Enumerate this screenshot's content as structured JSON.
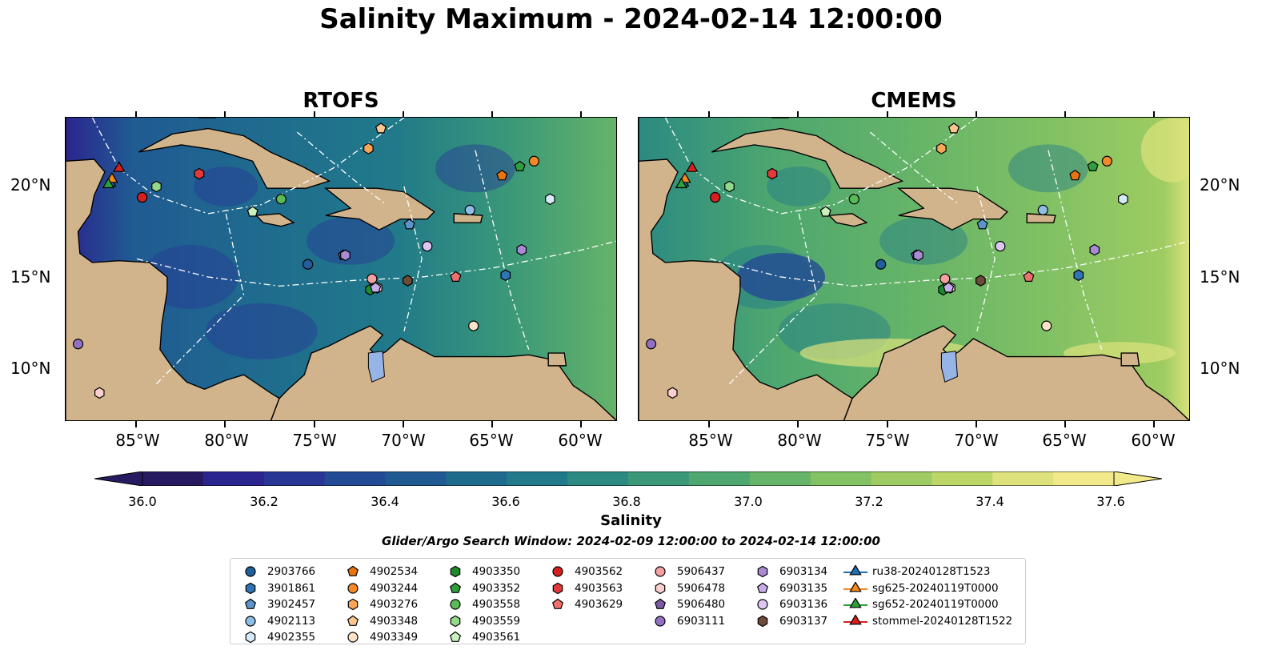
{
  "title": "Salinity Maximum - 2024-02-14 12:00:00",
  "panels": [
    {
      "title": "RTOFS"
    },
    {
      "title": "CMEMS"
    }
  ],
  "axes": {
    "lat_labels": [
      "20°N",
      "15°N",
      "10°N"
    ],
    "lon_labels": [
      "85°W",
      "80°W",
      "75°W",
      "70°W",
      "65°W",
      "60°W"
    ],
    "extent": {
      "lon_min": -89,
      "lon_max": -58,
      "lat_min": 7,
      "lat_max": 23.8
    }
  },
  "colorbar": {
    "label": "Salinity",
    "ticks": [
      "36.0",
      "36.2",
      "36.4",
      "36.6",
      "36.8",
      "37.0",
      "37.2",
      "37.4",
      "37.6"
    ],
    "range": [
      36.0,
      37.6
    ],
    "colors": [
      "#271a60",
      "#2b2590",
      "#283796",
      "#234a94",
      "#205a92",
      "#1f6b8e",
      "#217a89",
      "#2b8a82",
      "#3a9879",
      "#4ea76f",
      "#66b468",
      "#82c164",
      "#9ecc62",
      "#bcd768",
      "#dde27c",
      "#f2e98a"
    ]
  },
  "search_window": "Glider/Argo Search Window: 2024-02-09 12:00:00 to 2024-02-14 12:00:00",
  "legend": [
    {
      "label": "2903766",
      "shape": "circle",
      "color": "#1f5f9e"
    },
    {
      "label": "3901861",
      "shape": "hexagon",
      "color": "#2f74b5"
    },
    {
      "label": "3902457",
      "shape": "pentagon",
      "color": "#5b95cc"
    },
    {
      "label": "4902113",
      "shape": "circle",
      "color": "#8ebde6"
    },
    {
      "label": "4902355",
      "shape": "hexagon",
      "color": "#d6ebfa"
    },
    {
      "label": "4902534",
      "shape": "pentagon",
      "color": "#e8740f"
    },
    {
      "label": "4903244",
      "shape": "circle",
      "color": "#f5892a"
    },
    {
      "label": "4903276",
      "shape": "hexagon",
      "color": "#f8a65a"
    },
    {
      "label": "4903348",
      "shape": "pentagon",
      "color": "#fbc690"
    },
    {
      "label": "4903349",
      "shape": "circle",
      "color": "#fde3c8"
    },
    {
      "label": "4903350",
      "shape": "hexagon",
      "color": "#1d8a2e"
    },
    {
      "label": "4903352",
      "shape": "pentagon",
      "color": "#2f9e3c"
    },
    {
      "label": "4903558",
      "shape": "circle",
      "color": "#58bb58"
    },
    {
      "label": "4903559",
      "shape": "hexagon",
      "color": "#93d98a"
    },
    {
      "label": "4903561",
      "shape": "pentagon",
      "color": "#c9f0bd"
    },
    {
      "label": "4903562",
      "shape": "circle",
      "color": "#d6201f"
    },
    {
      "label": "4903563",
      "shape": "hexagon",
      "color": "#e23a3a"
    },
    {
      "label": "4903629",
      "shape": "pentagon",
      "color": "#f07070"
    },
    {
      "label": "5906437",
      "shape": "circle",
      "color": "#f4a0a0"
    },
    {
      "label": "5906478",
      "shape": "hexagon",
      "color": "#fccfcf"
    },
    {
      "label": "5906480",
      "shape": "pentagon",
      "color": "#7b5aa6"
    },
    {
      "label": "6903111",
      "shape": "circle",
      "color": "#9370c2"
    },
    {
      "label": "6903134",
      "shape": "hexagon",
      "color": "#a98ad4"
    },
    {
      "label": "6903135",
      "shape": "pentagon",
      "color": "#c6acea"
    },
    {
      "label": "6903136",
      "shape": "circle",
      "color": "#dec8f3"
    },
    {
      "label": "6903137",
      "shape": "hexagon",
      "color": "#6e4a3a"
    },
    {
      "label": "ru38-20240128T1523",
      "shape": "triangle",
      "color": "#1f6fb3"
    },
    {
      "label": "sg625-20240119T0000",
      "shape": "triangle",
      "color": "#f5891e"
    },
    {
      "label": "sg652-20240119T0000",
      "shape": "triangle",
      "color": "#2f9e3c"
    },
    {
      "label": "stommel-20240128T1522",
      "shape": "triangle",
      "color": "#d6201f"
    }
  ],
  "markers": [
    {
      "id": "2903766",
      "lon": -75.4,
      "lat": 15.7
    },
    {
      "id": "3901861",
      "lon": -64.3,
      "lat": 15.1
    },
    {
      "id": "3902457",
      "lon": -69.7,
      "lat": 17.9
    },
    {
      "id": "4902113",
      "lon": -66.3,
      "lat": 18.7
    },
    {
      "id": "4902355",
      "lon": -61.8,
      "lat": 19.3
    },
    {
      "id": "4902534",
      "lon": -64.5,
      "lat": 20.6
    },
    {
      "id": "4903244",
      "lon": -62.7,
      "lat": 21.4
    },
    {
      "id": "4903276",
      "lon": -72.0,
      "lat": 22.1
    },
    {
      "id": "4903348",
      "lon": -71.3,
      "lat": 23.2
    },
    {
      "id": "4903349",
      "lon": -66.1,
      "lat": 12.3
    },
    {
      "id": "4903350",
      "lon": -71.9,
      "lat": 14.3
    },
    {
      "id": "4903352",
      "lon": -63.5,
      "lat": 21.1
    },
    {
      "id": "4903558",
      "lon": -76.9,
      "lat": 19.3
    },
    {
      "id": "4903559",
      "lon": -83.9,
      "lat": 20.0
    },
    {
      "id": "4903561",
      "lon": -78.5,
      "lat": 18.6
    },
    {
      "id": "4903562",
      "lon": -84.7,
      "lat": 19.4
    },
    {
      "id": "4903563",
      "lon": -81.5,
      "lat": 20.7
    },
    {
      "id": "4903629",
      "lon": -67.1,
      "lat": 15.0
    },
    {
      "id": "5906437",
      "lon": -71.8,
      "lat": 14.9
    },
    {
      "id": "5906478",
      "lon": -71.5,
      "lat": 14.4
    },
    {
      "id": "5906480",
      "lon": -73.4,
      "lat": 16.2
    },
    {
      "id": "6903111",
      "lon": -88.3,
      "lat": 11.3
    },
    {
      "id": "6903134",
      "lon": -73.3,
      "lat": 16.2
    },
    {
      "id": "6903135",
      "lon": -71.6,
      "lat": 14.4
    },
    {
      "id": "6903136",
      "lon": -68.7,
      "lat": 16.7
    },
    {
      "id": "6903137",
      "lon": -69.8,
      "lat": 14.8
    },
    {
      "id": "6903134b",
      "lon": -63.4,
      "lat": 16.5
    },
    {
      "id": "5906478b",
      "lon": -87.1,
      "lat": 8.6
    },
    {
      "id": "ru38-20240128T1523",
      "lon": -86.5,
      "lat": 20.2
    },
    {
      "id": "sg625-20240119T0000",
      "lon": -86.4,
      "lat": 20.4
    },
    {
      "id": "sg652-20240119T0000",
      "lon": -86.6,
      "lat": 20.1
    },
    {
      "id": "stommel-20240128T1522",
      "lon": -86.0,
      "lat": 21.0
    }
  ]
}
